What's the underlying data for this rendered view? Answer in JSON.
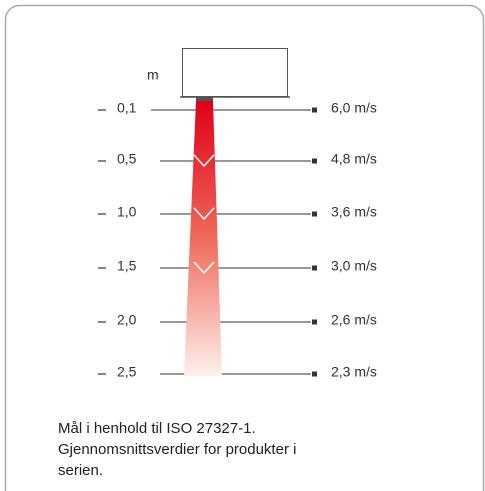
{
  "diagram": {
    "unit": "m",
    "rows": [
      {
        "distance": "0,1",
        "speed": "6,0 m/s"
      },
      {
        "distance": "0,5",
        "speed": "4,8 m/s"
      },
      {
        "distance": "1,0",
        "speed": "3,6 m/s"
      },
      {
        "distance": "1,5",
        "speed": "3,0 m/s"
      },
      {
        "distance": "2,0",
        "speed": "2,6 m/s"
      },
      {
        "distance": "2,5",
        "speed": "2,3 m/s"
      }
    ],
    "caption": [
      "Mål i henhold til ISO 27327-1.",
      "Gjennomsnittsverdier for produkter i",
      "serien."
    ]
  }
}
